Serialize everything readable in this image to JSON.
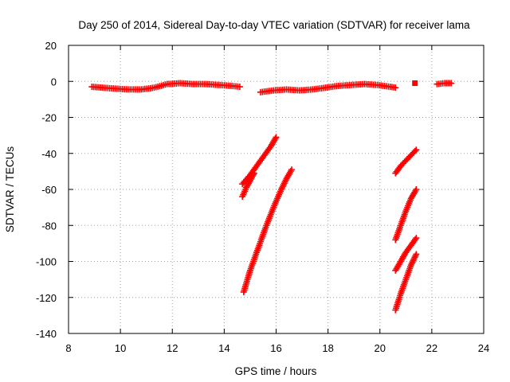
{
  "chart_data": {
    "type": "scatter",
    "title": "Day 250 of 2014, Sidereal Day-to-day VTEC variation (SDTVAR) for receiver lama",
    "xlabel": "GPS time / hours",
    "ylabel": "SDTVAR / TECUs",
    "xlim": [
      8,
      24
    ],
    "ylim": [
      -140,
      20
    ],
    "xticks": [
      "8",
      "10",
      "12",
      "14",
      "16",
      "18",
      "20",
      "22",
      "24"
    ],
    "yticks": [
      "20",
      "0",
      "-20",
      "-40",
      "-60",
      "-80",
      "-100",
      "-120",
      "-140"
    ],
    "grid": true,
    "marker": "plus",
    "color": "#ff0000",
    "series": [
      {
        "points": [
          [
            8.9,
            -3
          ],
          [
            9.3,
            -3.5
          ],
          [
            9.8,
            -4
          ],
          [
            10.3,
            -4.5
          ],
          [
            10.8,
            -4.5
          ],
          [
            11.3,
            -3.5
          ],
          [
            11.8,
            -1.5
          ],
          [
            12.3,
            -1
          ],
          [
            12.8,
            -1.5
          ],
          [
            13.3,
            -1.5
          ],
          [
            13.8,
            -2
          ],
          [
            14.3,
            -2.5
          ],
          [
            14.6,
            -3
          ]
        ]
      },
      {
        "points": [
          [
            15.4,
            -6
          ],
          [
            15.9,
            -5
          ],
          [
            16.4,
            -4.5
          ],
          [
            16.9,
            -5
          ],
          [
            17.4,
            -4.5
          ],
          [
            17.9,
            -3.5
          ],
          [
            18.4,
            -2.5
          ],
          [
            18.9,
            -2
          ],
          [
            19.4,
            -1.5
          ],
          [
            19.9,
            -2
          ],
          [
            20.4,
            -3
          ],
          [
            20.6,
            -3.5
          ]
        ]
      },
      {
        "points": [
          [
            21.35,
            -1
          ]
        ]
      },
      {
        "points": [
          [
            22.2,
            -1.5
          ],
          [
            22.5,
            -1
          ],
          [
            22.75,
            -1
          ]
        ]
      },
      {
        "points": [
          [
            14.7,
            -57
          ],
          [
            15.0,
            -52
          ],
          [
            15.2,
            -48
          ],
          [
            15.5,
            -42
          ],
          [
            15.8,
            -36
          ],
          [
            16.0,
            -31
          ]
        ]
      },
      {
        "points": [
          [
            14.7,
            -64
          ],
          [
            14.85,
            -59
          ],
          [
            15.0,
            -55
          ],
          [
            15.15,
            -51
          ]
        ]
      },
      {
        "points": [
          [
            14.75,
            -117
          ],
          [
            15.0,
            -105
          ],
          [
            15.3,
            -93
          ],
          [
            15.6,
            -81
          ],
          [
            15.9,
            -70
          ],
          [
            16.2,
            -60
          ],
          [
            16.4,
            -54
          ],
          [
            16.6,
            -49
          ]
        ]
      },
      {
        "points": [
          [
            20.6,
            -51
          ],
          [
            20.8,
            -47
          ],
          [
            21.0,
            -44
          ],
          [
            21.2,
            -41
          ],
          [
            21.4,
            -38
          ]
        ]
      },
      {
        "points": [
          [
            20.6,
            -88
          ],
          [
            20.8,
            -80
          ],
          [
            21.0,
            -72
          ],
          [
            21.2,
            -65
          ],
          [
            21.4,
            -60
          ]
        ]
      },
      {
        "points": [
          [
            20.6,
            -105
          ],
          [
            20.8,
            -100
          ],
          [
            21.0,
            -95
          ],
          [
            21.2,
            -91
          ],
          [
            21.4,
            -87
          ]
        ]
      },
      {
        "points": [
          [
            20.6,
            -127
          ],
          [
            20.8,
            -118
          ],
          [
            21.0,
            -110
          ],
          [
            21.2,
            -102
          ],
          [
            21.4,
            -96
          ]
        ]
      }
    ]
  }
}
